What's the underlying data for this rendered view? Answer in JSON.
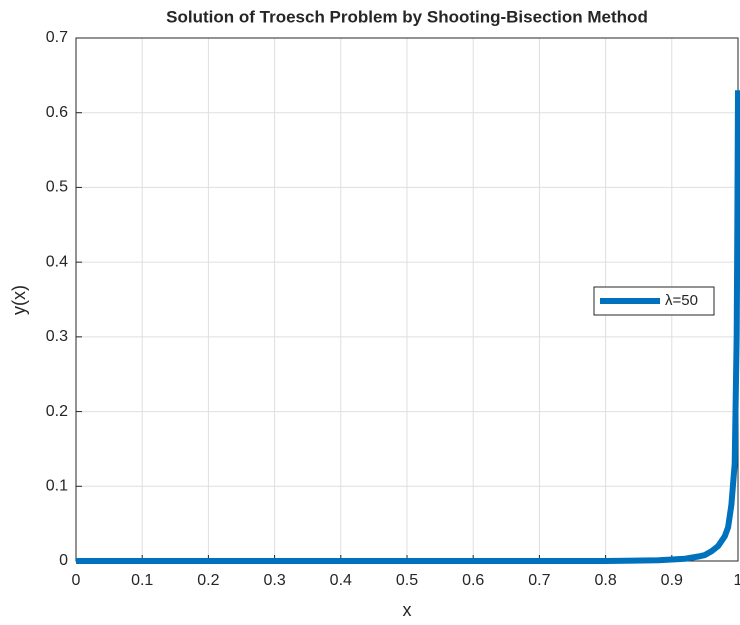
{
  "chart_data": {
    "type": "line",
    "title": "Solution of Troesch Problem by Shooting-Bisection Method",
    "x_label": "x",
    "y_label": "y(x)",
    "x": [
      0,
      0.1,
      0.2,
      0.3,
      0.4,
      0.5,
      0.6,
      0.7,
      0.8,
      0.88,
      0.9,
      0.92,
      0.94,
      0.95,
      0.96,
      0.97,
      0.98,
      0.985,
      0.99,
      0.995,
      0.998,
      0.999,
      1
    ],
    "series": [
      {
        "name": "λ=50",
        "color": "#0072bd",
        "values": [
          0,
          0,
          0,
          0,
          0,
          0,
          0,
          0,
          0,
          0.001,
          0.002,
          0.003,
          0.006,
          0.008,
          0.013,
          0.02,
          0.033,
          0.045,
          0.075,
          0.13,
          0.3,
          0.45,
          0.63
        ]
      }
    ],
    "xlim": [
      0,
      1
    ],
    "xticks": [
      0,
      0.1,
      0.2,
      0.3,
      0.4,
      0.5,
      0.6,
      0.7,
      0.8,
      0.9,
      1
    ],
    "ylim": [
      0,
      0.7
    ],
    "yticks": [
      0,
      0.1,
      0.2,
      0.3,
      0.4,
      0.5,
      0.6,
      0.7
    ],
    "grid": true,
    "legend": "east"
  }
}
